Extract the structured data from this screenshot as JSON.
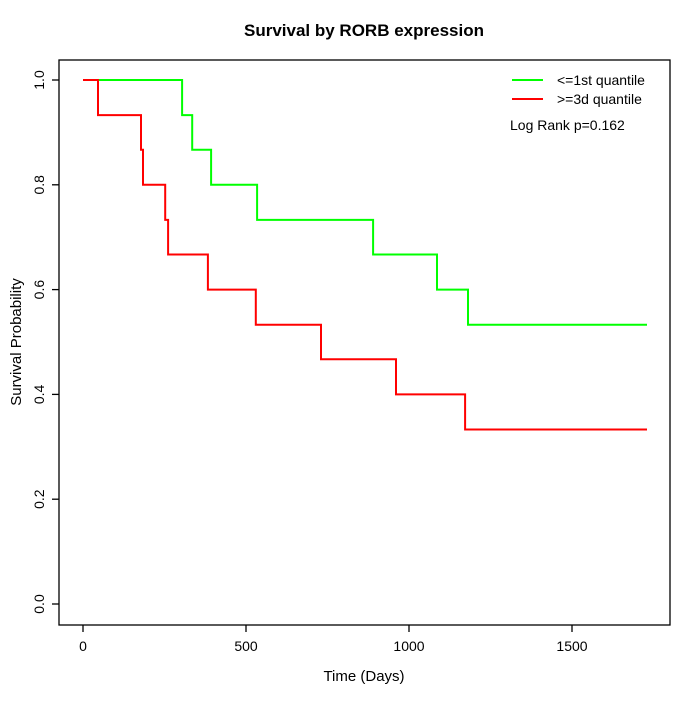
{
  "title": "Survival by RORB expression",
  "axes": {
    "xlabel": "Time (Days)",
    "ylabel": "Survival Probability",
    "x_ticks": [
      0,
      500,
      1000,
      1500
    ],
    "y_ticks": [
      "0.0",
      "0.2",
      "0.4",
      "0.6",
      "0.8",
      "1.0"
    ]
  },
  "legend": {
    "items": [
      {
        "label": "<=1st quantile",
        "color": "#00ff00"
      },
      {
        "label": ">=3d quantile",
        "color": "#ff0000"
      }
    ],
    "note": "Log Rank p=0.162"
  },
  "chart_data": {
    "type": "line",
    "subtype": "kaplan-meier-step",
    "title": "Survival by RORB expression",
    "xlabel": "Time (Days)",
    "ylabel": "Survival Probability",
    "xlim": [
      0,
      1800
    ],
    "ylim": [
      0.0,
      1.0
    ],
    "grid": false,
    "legend_position": "top-right",
    "annotation": "Log Rank p=0.162",
    "series": [
      {
        "name": "<=1st quantile",
        "color": "#00ff00",
        "start": {
          "time": 0,
          "survival": 1.0
        },
        "steps": [
          {
            "time": 304,
            "survival": 0.933
          },
          {
            "time": 335,
            "survival": 0.867
          },
          {
            "time": 393,
            "survival": 0.8
          },
          {
            "time": 534,
            "survival": 0.733
          },
          {
            "time": 890,
            "survival": 0.667
          },
          {
            "time": 1086,
            "survival": 0.6
          },
          {
            "time": 1181,
            "survival": 0.533
          }
        ],
        "end_time": 1730
      },
      {
        "name": ">=3d quantile",
        "color": "#ff0000",
        "start": {
          "time": 0,
          "survival": 1.0
        },
        "steps": [
          {
            "time": 46,
            "survival": 0.933
          },
          {
            "time": 178,
            "survival": 0.867
          },
          {
            "time": 184,
            "survival": 0.8
          },
          {
            "time": 252,
            "survival": 0.733
          },
          {
            "time": 261,
            "survival": 0.667
          },
          {
            "time": 383,
            "survival": 0.6
          },
          {
            "time": 530,
            "survival": 0.533
          },
          {
            "time": 730,
            "survival": 0.467
          },
          {
            "time": 960,
            "survival": 0.4
          },
          {
            "time": 1172,
            "survival": 0.333
          }
        ],
        "end_time": 1730
      }
    ]
  }
}
